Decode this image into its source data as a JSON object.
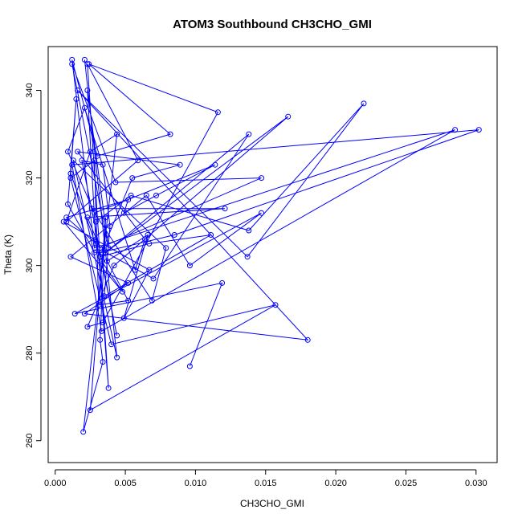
{
  "chart_data": {
    "type": "line",
    "title": "ATOM3 Southbound CH3CHO_GMI",
    "xlabel": "CH3CHO_GMI",
    "ylabel": "Theta (K)",
    "xlim": [
      -0.0005,
      0.0315
    ],
    "ylim": [
      255,
      350
    ],
    "x_ticks": [
      0.0,
      0.005,
      0.01,
      0.015,
      0.02,
      0.025,
      0.03
    ],
    "x_tick_labels": [
      "0.000",
      "0.005",
      "0.010",
      "0.015",
      "0.020",
      "0.025",
      "0.030"
    ],
    "y_ticks": [
      260,
      280,
      300,
      320,
      340
    ],
    "y_tick_labels": [
      "260",
      "280",
      "300",
      "320",
      "340"
    ],
    "grid": false,
    "legend": "none",
    "series": [
      {
        "color": "#0000ff",
        "marker": "open-circle",
        "x": [
          0.0096,
          0.0119,
          0.0014,
          0.0147,
          0.0096,
          0.0065,
          0.0011,
          0.0052,
          0.0021,
          0.018,
          0.0016,
          0.0137,
          0.022,
          0.0138,
          0.0054,
          0.0029,
          0.0038,
          0.0023,
          0.0059,
          0.0008,
          0.0025,
          0.0044,
          0.002,
          0.0034,
          0.0032,
          0.0036,
          0.0025,
          0.0157,
          0.004,
          0.0011,
          0.0028,
          0.0031,
          0.0052,
          0.0037,
          0.0066,
          0.0049,
          0.0067,
          0.0006,
          0.0048,
          0.0033,
          0.0044,
          0.0019,
          0.0034,
          0.0039,
          0.0035,
          0.0111,
          0.0067,
          0.0032,
          0.0011,
          0.0015,
          0.0009,
          0.0028,
          0.0036,
          0.007,
          0.0138,
          0.0036,
          0.0166,
          0.0042,
          0.0023,
          0.0034,
          0.0116,
          0.0024,
          0.0082,
          0.003,
          0.0012,
          0.0028,
          0.0285,
          0.0033,
          0.0012,
          0.0302,
          0.0085,
          0.0033,
          0.0055,
          0.0089,
          0.0016,
          0.0064,
          0.0057,
          0.0021,
          0.0009,
          0.0028,
          0.0114,
          0.0072,
          0.0049,
          0.0052,
          0.0008,
          0.0029,
          0.0023,
          0.0038,
          0.0012,
          0.0043,
          0.0147,
          0.0032,
          0.0023,
          0.0121,
          0.0026,
          0.0069,
          0.0079,
          0.0013,
          0.0044,
          0.0021
        ],
        "y": [
          277,
          296,
          289,
          312,
          300,
          316,
          302,
          296,
          289,
          283,
          340,
          302,
          337,
          308,
          316,
          310,
          272,
          346,
          324,
          310,
          326,
          330,
          262,
          278,
          283,
          311,
          267,
          291,
          282,
          320,
          324,
          291,
          292,
          301,
          307,
          288,
          299,
          310,
          294,
          301,
          284,
          324,
          323,
          309,
          293,
          307,
          305,
          302,
          321,
          338,
          314,
          303,
          303,
          297,
          330,
          303,
          334,
          300,
          286,
          287,
          335,
          346,
          330,
          325,
          347,
          304,
          331,
          285,
          323,
          331,
          307,
          303,
          320,
          323,
          326,
          306,
          299,
          336,
          326,
          312,
          323,
          316,
          312,
          315,
          311,
          305,
          340,
          304,
          346,
          319,
          320,
          304,
          311,
          313,
          313,
          292,
          304,
          324,
          279,
          347
        ]
      }
    ]
  }
}
